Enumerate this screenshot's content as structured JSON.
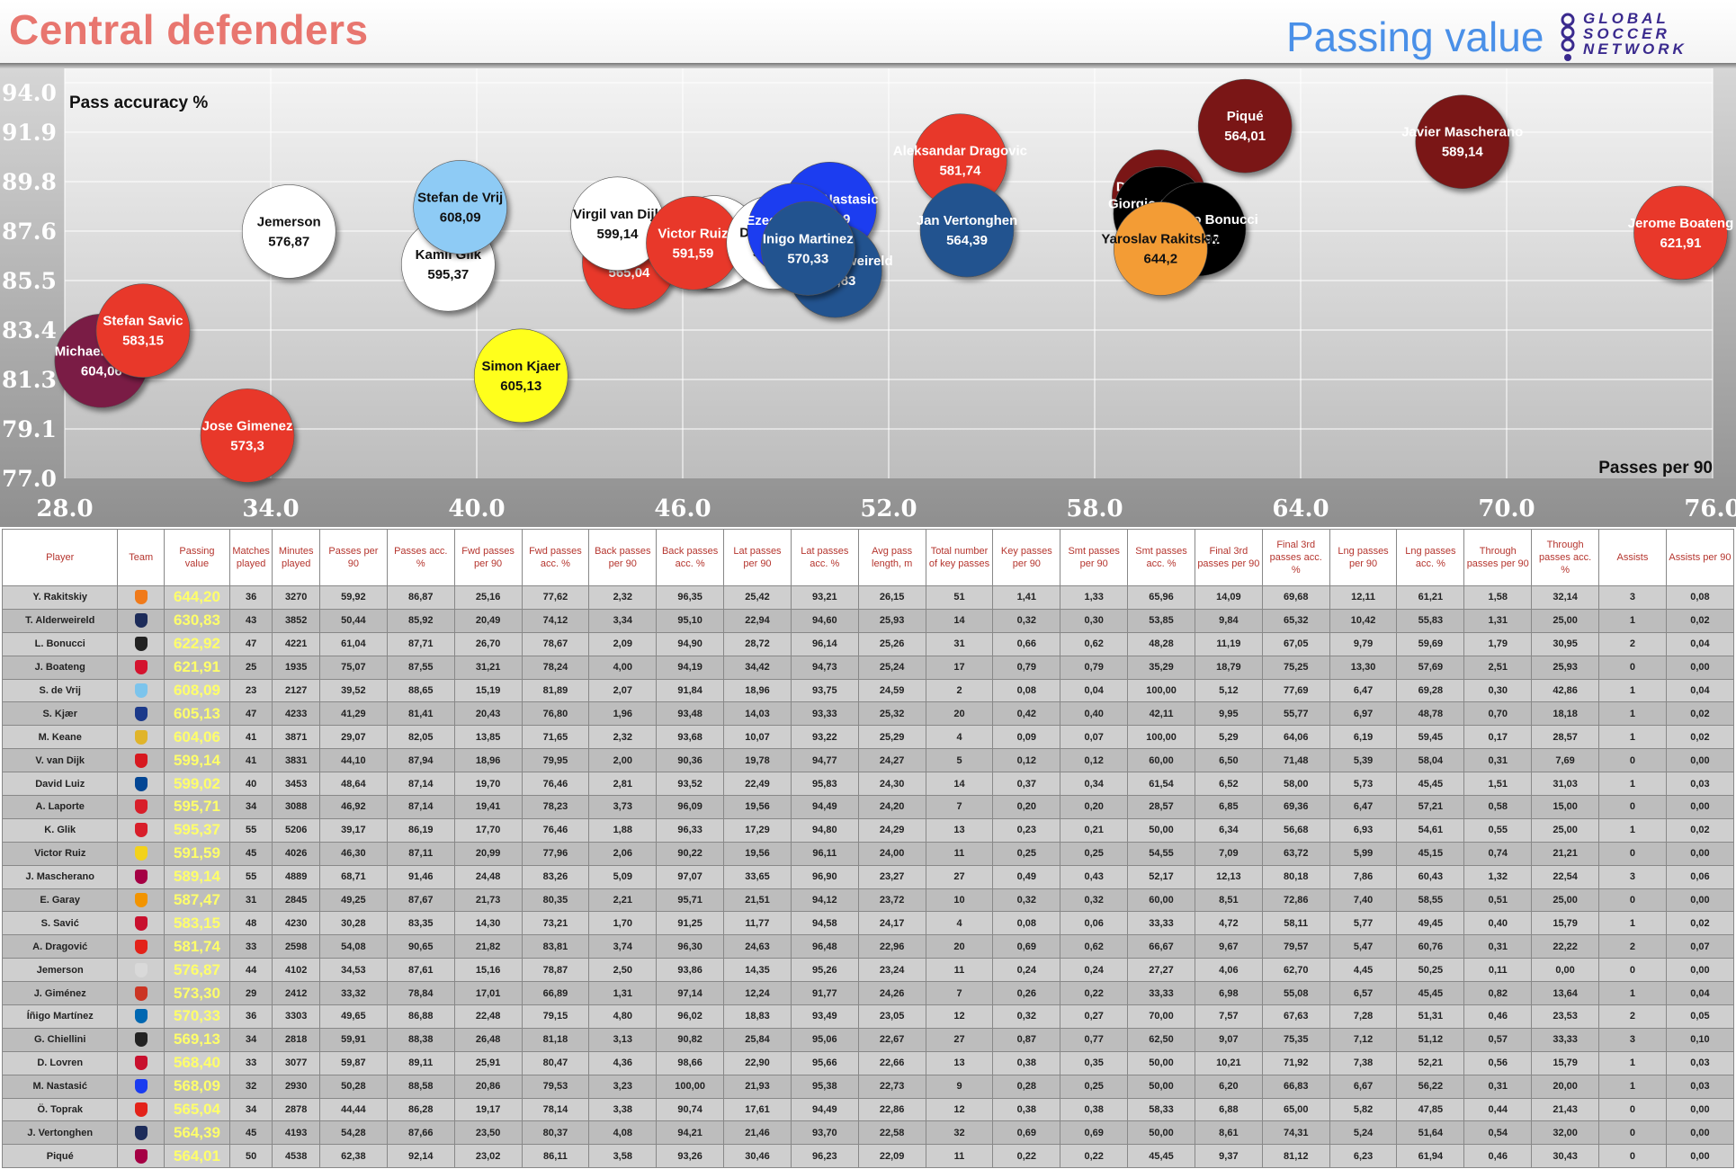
{
  "header": {
    "title": "Central defenders",
    "subtitle": "Passing value",
    "logo_lines": [
      "GLOBAL",
      "SOCCER",
      "NETWORK"
    ]
  },
  "colors": {
    "title": "#e8766f",
    "subtitle": "#4a90e8",
    "header_text": "#b5352e",
    "passing_value_text": "#ffff6a"
  },
  "chart_data": {
    "type": "scatter",
    "ylabel": "Pass accuracy %",
    "xlabel": "Passes per 90",
    "xlim": [
      28.0,
      76.0
    ],
    "ylim": [
      77.0,
      94.0
    ],
    "xticks": [
      "28.0",
      "34.0",
      "40.0",
      "46.0",
      "52.0",
      "58.0",
      "64.0",
      "70.0",
      "76.0"
    ],
    "yticks": [
      "77.0",
      "79.1",
      "81.3",
      "83.4",
      "85.5",
      "87.6",
      "89.8",
      "91.9",
      "94.0"
    ],
    "grid": true,
    "points": [
      {
        "name": "Michael Keane",
        "value": "604,06",
        "x": 29.07,
        "y": 82.05,
        "color": "#7a1f45"
      },
      {
        "name": "Stefan Savic",
        "value": "583,15",
        "x": 30.28,
        "y": 83.35,
        "color": "#e8392a"
      },
      {
        "name": "Jose Gimenez",
        "value": "573,3",
        "x": 33.32,
        "y": 78.84,
        "color": "#e8392a"
      },
      {
        "name": "Jemerson",
        "value": "576,87",
        "x": 34.53,
        "y": 87.61,
        "color": "#ffffff"
      },
      {
        "name": "Kamil Glik",
        "value": "595,37",
        "x": 39.17,
        "y": 86.19,
        "color": "#ffffff"
      },
      {
        "name": "Stefan de Vrij",
        "value": "608,09",
        "x": 39.52,
        "y": 88.65,
        "color": "#8ecbf5"
      },
      {
        "name": "Simon Kjaer",
        "value": "605,13",
        "x": 41.29,
        "y": 81.41,
        "color": "#ffff1a"
      },
      {
        "name": "Omer Toprak",
        "value": "565,04",
        "x": 44.44,
        "y": 86.28,
        "color": "#e8392a"
      },
      {
        "name": "Virgil van Dijk",
        "value": "599,14",
        "x": 44.1,
        "y": 87.94,
        "color": "#ffffff"
      },
      {
        "name": "Aymeric Laporte",
        "value": "595,71",
        "x": 46.92,
        "y": 87.14,
        "color": "#ffffff"
      },
      {
        "name": "Victor Ruiz",
        "value": "591,59",
        "x": 46.3,
        "y": 87.11,
        "color": "#e8392a"
      },
      {
        "name": "Matija Nastasic",
        "value": "568,09",
        "x": 50.28,
        "y": 88.58,
        "color": "#1a3cf0"
      },
      {
        "name": "David Luiz",
        "value": "599,02",
        "x": 48.64,
        "y": 87.14,
        "color": "#ffffff"
      },
      {
        "name": "Ezequiel Garay",
        "value": "587,47",
        "x": 49.25,
        "y": 87.67,
        "color": "#1a3cf0"
      },
      {
        "name": "Toby Alderweireld",
        "value": "630,83",
        "x": 50.44,
        "y": 85.92,
        "color": "#23538f"
      },
      {
        "name": "Inigo Martinez",
        "value": "570,33",
        "x": 49.65,
        "y": 86.88,
        "color": "#23538f"
      },
      {
        "name": "Aleksandar Dragovic",
        "value": "581,74",
        "x": 54.08,
        "y": 90.65,
        "color": "#e8392a"
      },
      {
        "name": "Jan Vertonghen",
        "value": "564,39",
        "x": 54.28,
        "y": 87.66,
        "color": "#23538f"
      },
      {
        "name": "Dejan Lovren",
        "value": "568,4",
        "x": 59.87,
        "y": 89.11,
        "color": "#7a1414"
      },
      {
        "name": "Giorgio Chiellini",
        "value": "569,13",
        "x": 59.91,
        "y": 88.38,
        "color": "#000000"
      },
      {
        "name": "Leonardo Bonucci",
        "value": "622,92",
        "x": 61.04,
        "y": 87.71,
        "color": "#000000"
      },
      {
        "name": "Yaroslav Rakitskiy",
        "value": "644,2",
        "x": 59.92,
        "y": 86.87,
        "color": "#f39c35"
      },
      {
        "name": "Piqué",
        "value": "564,01",
        "x": 62.38,
        "y": 92.14,
        "color": "#7a1414"
      },
      {
        "name": "Javier Mascherano",
        "value": "589,14",
        "x": 68.71,
        "y": 91.46,
        "color": "#7a1414"
      },
      {
        "name": "Jerome Boateng",
        "value": "621,91",
        "x": 75.07,
        "y": 87.55,
        "color": "#e8392a"
      }
    ]
  },
  "table": {
    "columns": [
      "Player",
      "Team",
      "Passing value",
      "Matches played",
      "Minutes played",
      "Passes per 90",
      "Passes acc. %",
      "Fwd passes per 90",
      "Fwd passes acc. %",
      "Back passes per 90",
      "Back passes acc. %",
      "Lat passes per 90",
      "Lat passes acc. %",
      "Avg pass length, m",
      "Total number of key passes",
      "Key passes per 90",
      "Smt passes per 90",
      "Smt passes acc. %",
      "Final 3rd passes per 90",
      "Final 3rd passes acc. %",
      "Lng passes per 90",
      "Lng passes acc. %",
      "Through passes per 90",
      "Through passes acc. %",
      "Assists",
      "Assists per 90"
    ],
    "rows": [
      {
        "player": "Y. Rakitskiy",
        "crest": "#f07a1a",
        "cells": [
          "644,20",
          "36",
          "3270",
          "59,92",
          "86,87",
          "25,16",
          "77,62",
          "2,32",
          "96,35",
          "25,42",
          "93,21",
          "26,15",
          "51",
          "1,41",
          "1,33",
          "65,96",
          "14,09",
          "69,68",
          "12,11",
          "61,21",
          "1,58",
          "32,14",
          "3",
          "0,08"
        ]
      },
      {
        "player": "T. Alderweireld",
        "crest": "#1d2c5a",
        "cells": [
          "630,83",
          "43",
          "3852",
          "50,44",
          "85,92",
          "20,49",
          "74,12",
          "3,34",
          "95,10",
          "22,94",
          "94,60",
          "25,93",
          "14",
          "0,32",
          "0,30",
          "53,85",
          "9,84",
          "65,32",
          "10,42",
          "55,83",
          "1,31",
          "25,00",
          "1",
          "0,02"
        ]
      },
      {
        "player": "L. Bonucci",
        "crest": "#222222",
        "cells": [
          "622,92",
          "47",
          "4221",
          "61,04",
          "87,71",
          "26,70",
          "78,67",
          "2,09",
          "94,90",
          "28,72",
          "96,14",
          "25,26",
          "31",
          "0,66",
          "0,62",
          "48,28",
          "11,19",
          "67,05",
          "9,79",
          "59,69",
          "1,79",
          "30,95",
          "2",
          "0,04"
        ]
      },
      {
        "player": "J. Boateng",
        "crest": "#d4132e",
        "cells": [
          "621,91",
          "25",
          "1935",
          "75,07",
          "87,55",
          "31,21",
          "78,24",
          "4,00",
          "94,19",
          "34,42",
          "94,73",
          "25,24",
          "17",
          "0,79",
          "0,79",
          "35,29",
          "18,79",
          "75,25",
          "13,30",
          "57,69",
          "2,51",
          "25,93",
          "0",
          "0,00"
        ]
      },
      {
        "player": "S. de Vrij",
        "crest": "#7cc4ec",
        "cells": [
          "608,09",
          "23",
          "2127",
          "39,52",
          "88,65",
          "15,19",
          "81,89",
          "2,07",
          "91,84",
          "18,96",
          "93,75",
          "24,59",
          "2",
          "0,08",
          "0,04",
          "100,00",
          "5,12",
          "77,69",
          "6,47",
          "69,28",
          "0,30",
          "42,86",
          "1",
          "0,04"
        ]
      },
      {
        "player": "S. Kjær",
        "crest": "#1c3a8a",
        "cells": [
          "605,13",
          "47",
          "4233",
          "41,29",
          "81,41",
          "20,43",
          "76,80",
          "1,96",
          "93,48",
          "14,03",
          "93,33",
          "25,32",
          "20",
          "0,42",
          "0,40",
          "42,11",
          "9,95",
          "55,77",
          "6,97",
          "48,78",
          "0,70",
          "18,18",
          "1",
          "0,02"
        ]
      },
      {
        "player": "M. Keane",
        "crest": "#e0b42a",
        "cells": [
          "604,06",
          "41",
          "3871",
          "29,07",
          "82,05",
          "13,85",
          "71,65",
          "2,32",
          "93,68",
          "10,07",
          "93,22",
          "25,29",
          "4",
          "0,09",
          "0,07",
          "100,00",
          "5,29",
          "64,06",
          "6,19",
          "59,45",
          "0,17",
          "28,57",
          "1",
          "0,02"
        ]
      },
      {
        "player": "V. van Dijk",
        "crest": "#d71920",
        "cells": [
          "599,14",
          "41",
          "3831",
          "44,10",
          "87,94",
          "18,96",
          "79,95",
          "2,00",
          "90,36",
          "19,78",
          "94,77",
          "24,27",
          "5",
          "0,12",
          "0,12",
          "60,00",
          "6,50",
          "71,48",
          "5,39",
          "58,04",
          "0,31",
          "7,69",
          "0",
          "0,00"
        ]
      },
      {
        "player": "David Luiz",
        "crest": "#034694",
        "cells": [
          "599,02",
          "40",
          "3453",
          "48,64",
          "87,14",
          "19,70",
          "76,46",
          "2,81",
          "93,52",
          "22,49",
          "95,83",
          "24,30",
          "14",
          "0,37",
          "0,34",
          "61,54",
          "6,52",
          "58,00",
          "5,73",
          "45,45",
          "1,51",
          "31,03",
          "1",
          "0,03"
        ]
      },
      {
        "player": "A. Laporte",
        "crest": "#d81e2a",
        "cells": [
          "595,71",
          "34",
          "3088",
          "46,92",
          "87,14",
          "19,41",
          "78,23",
          "3,73",
          "96,09",
          "19,56",
          "94,49",
          "24,20",
          "7",
          "0,20",
          "0,20",
          "28,57",
          "6,85",
          "69,36",
          "6,47",
          "57,21",
          "0,58",
          "15,00",
          "0",
          "0,00"
        ]
      },
      {
        "player": "K. Glik",
        "crest": "#d81e2a",
        "cells": [
          "595,37",
          "55",
          "5206",
          "39,17",
          "86,19",
          "17,70",
          "76,46",
          "1,88",
          "96,33",
          "17,29",
          "94,80",
          "24,29",
          "13",
          "0,23",
          "0,21",
          "50,00",
          "6,34",
          "56,68",
          "6,93",
          "54,61",
          "0,55",
          "25,00",
          "1",
          "0,02"
        ]
      },
      {
        "player": "Victor Ruiz",
        "crest": "#f3d21a",
        "cells": [
          "591,59",
          "45",
          "4026",
          "46,30",
          "87,11",
          "20,99",
          "77,96",
          "2,06",
          "90,22",
          "19,56",
          "96,11",
          "24,00",
          "11",
          "0,25",
          "0,25",
          "54,55",
          "7,09",
          "63,72",
          "5,99",
          "45,15",
          "0,74",
          "21,21",
          "0",
          "0,00"
        ]
      },
      {
        "player": "J. Mascherano",
        "crest": "#a50044",
        "cells": [
          "589,14",
          "55",
          "4889",
          "68,71",
          "91,46",
          "24,48",
          "83,26",
          "5,09",
          "97,07",
          "33,65",
          "96,90",
          "23,27",
          "27",
          "0,49",
          "0,43",
          "52,17",
          "12,13",
          "80,18",
          "7,86",
          "60,43",
          "1,32",
          "22,54",
          "3",
          "0,06"
        ]
      },
      {
        "player": "E. Garay",
        "crest": "#f29400",
        "cells": [
          "587,47",
          "31",
          "2845",
          "49,25",
          "87,67",
          "21,73",
          "80,35",
          "2,21",
          "95,71",
          "21,51",
          "94,12",
          "23,72",
          "10",
          "0,32",
          "0,32",
          "60,00",
          "8,51",
          "72,86",
          "7,40",
          "58,55",
          "0,51",
          "25,00",
          "0",
          "0,00"
        ]
      },
      {
        "player": "S. Savić",
        "crest": "#c8102e",
        "cells": [
          "583,15",
          "48",
          "4230",
          "30,28",
          "83,35",
          "14,30",
          "73,21",
          "1,70",
          "91,25",
          "11,77",
          "94,58",
          "24,17",
          "4",
          "0,08",
          "0,06",
          "33,33",
          "4,72",
          "58,11",
          "5,77",
          "49,45",
          "0,40",
          "15,79",
          "1",
          "0,02"
        ]
      },
      {
        "player": "A. Dragović",
        "crest": "#e32219",
        "cells": [
          "581,74",
          "33",
          "2598",
          "54,08",
          "90,65",
          "21,82",
          "83,81",
          "3,74",
          "96,30",
          "24,63",
          "96,48",
          "22,96",
          "20",
          "0,69",
          "0,62",
          "66,67",
          "9,67",
          "79,57",
          "5,47",
          "60,76",
          "0,31",
          "22,22",
          "2",
          "0,07"
        ]
      },
      {
        "player": "Jemerson",
        "crest": "#d9d9d9",
        "cells": [
          "576,87",
          "44",
          "4102",
          "34,53",
          "87,61",
          "15,16",
          "78,87",
          "2,50",
          "93,86",
          "14,35",
          "95,26",
          "23,24",
          "11",
          "0,24",
          "0,24",
          "27,27",
          "4,06",
          "62,70",
          "4,45",
          "50,25",
          "0,11",
          "0,00",
          "0",
          "0,00"
        ]
      },
      {
        "player": "J. Giménez",
        "crest": "#cb3524",
        "cells": [
          "573,30",
          "29",
          "2412",
          "33,32",
          "78,84",
          "17,01",
          "66,89",
          "1,31",
          "97,14",
          "12,24",
          "91,77",
          "24,26",
          "7",
          "0,26",
          "0,22",
          "33,33",
          "6,98",
          "55,08",
          "6,57",
          "45,45",
          "0,82",
          "13,64",
          "1",
          "0,04"
        ]
      },
      {
        "player": "Íñigo Martínez",
        "crest": "#0067b1",
        "cells": [
          "570,33",
          "36",
          "3303",
          "49,65",
          "86,88",
          "22,48",
          "79,15",
          "4,80",
          "96,02",
          "18,83",
          "93,49",
          "23,05",
          "12",
          "0,32",
          "0,27",
          "70,00",
          "7,57",
          "67,63",
          "7,28",
          "51,31",
          "0,46",
          "23,53",
          "2",
          "0,05"
        ]
      },
      {
        "player": "G. Chiellini",
        "crest": "#222222",
        "cells": [
          "569,13",
          "34",
          "2818",
          "59,91",
          "88,38",
          "26,48",
          "81,18",
          "3,13",
          "90,82",
          "25,84",
          "95,06",
          "22,67",
          "27",
          "0,87",
          "0,77",
          "62,50",
          "9,07",
          "75,35",
          "7,12",
          "51,12",
          "0,57",
          "33,33",
          "3",
          "0,10"
        ]
      },
      {
        "player": "D. Lovren",
        "crest": "#c8102e",
        "cells": [
          "568,40",
          "33",
          "3077",
          "59,87",
          "89,11",
          "25,91",
          "80,47",
          "4,36",
          "98,66",
          "22,90",
          "95,66",
          "22,66",
          "13",
          "0,38",
          "0,35",
          "50,00",
          "10,21",
          "71,92",
          "7,38",
          "52,21",
          "0,56",
          "15,79",
          "1",
          "0,03"
        ]
      },
      {
        "player": "M. Nastasić",
        "crest": "#1a3cf0",
        "cells": [
          "568,09",
          "32",
          "2930",
          "50,28",
          "88,58",
          "20,86",
          "79,53",
          "3,23",
          "100,00",
          "21,93",
          "95,38",
          "22,73",
          "9",
          "0,28",
          "0,25",
          "50,00",
          "6,20",
          "66,83",
          "6,67",
          "56,22",
          "0,31",
          "20,00",
          "1",
          "0,03"
        ]
      },
      {
        "player": "Ö. Toprak",
        "crest": "#e32219",
        "cells": [
          "565,04",
          "34",
          "2878",
          "44,44",
          "86,28",
          "19,17",
          "78,14",
          "3,38",
          "90,74",
          "17,61",
          "94,49",
          "22,86",
          "12",
          "0,38",
          "0,38",
          "58,33",
          "6,88",
          "65,00",
          "5,82",
          "47,85",
          "0,44",
          "21,43",
          "0",
          "0,00"
        ]
      },
      {
        "player": "J. Vertonghen",
        "crest": "#1d2c5a",
        "cells": [
          "564,39",
          "45",
          "4193",
          "54,28",
          "87,66",
          "23,50",
          "80,37",
          "4,08",
          "94,21",
          "21,46",
          "93,70",
          "22,58",
          "32",
          "0,69",
          "0,69",
          "50,00",
          "8,61",
          "74,31",
          "5,24",
          "51,64",
          "0,54",
          "32,00",
          "0",
          "0,00"
        ]
      },
      {
        "player": "Piqué",
        "crest": "#a50044",
        "cells": [
          "564,01",
          "50",
          "4538",
          "62,38",
          "92,14",
          "23,02",
          "86,11",
          "3,58",
          "93,26",
          "30,46",
          "96,23",
          "22,09",
          "11",
          "0,22",
          "0,22",
          "45,45",
          "9,37",
          "81,12",
          "6,23",
          "61,94",
          "0,46",
          "30,43",
          "0",
          "0,00"
        ]
      }
    ]
  }
}
